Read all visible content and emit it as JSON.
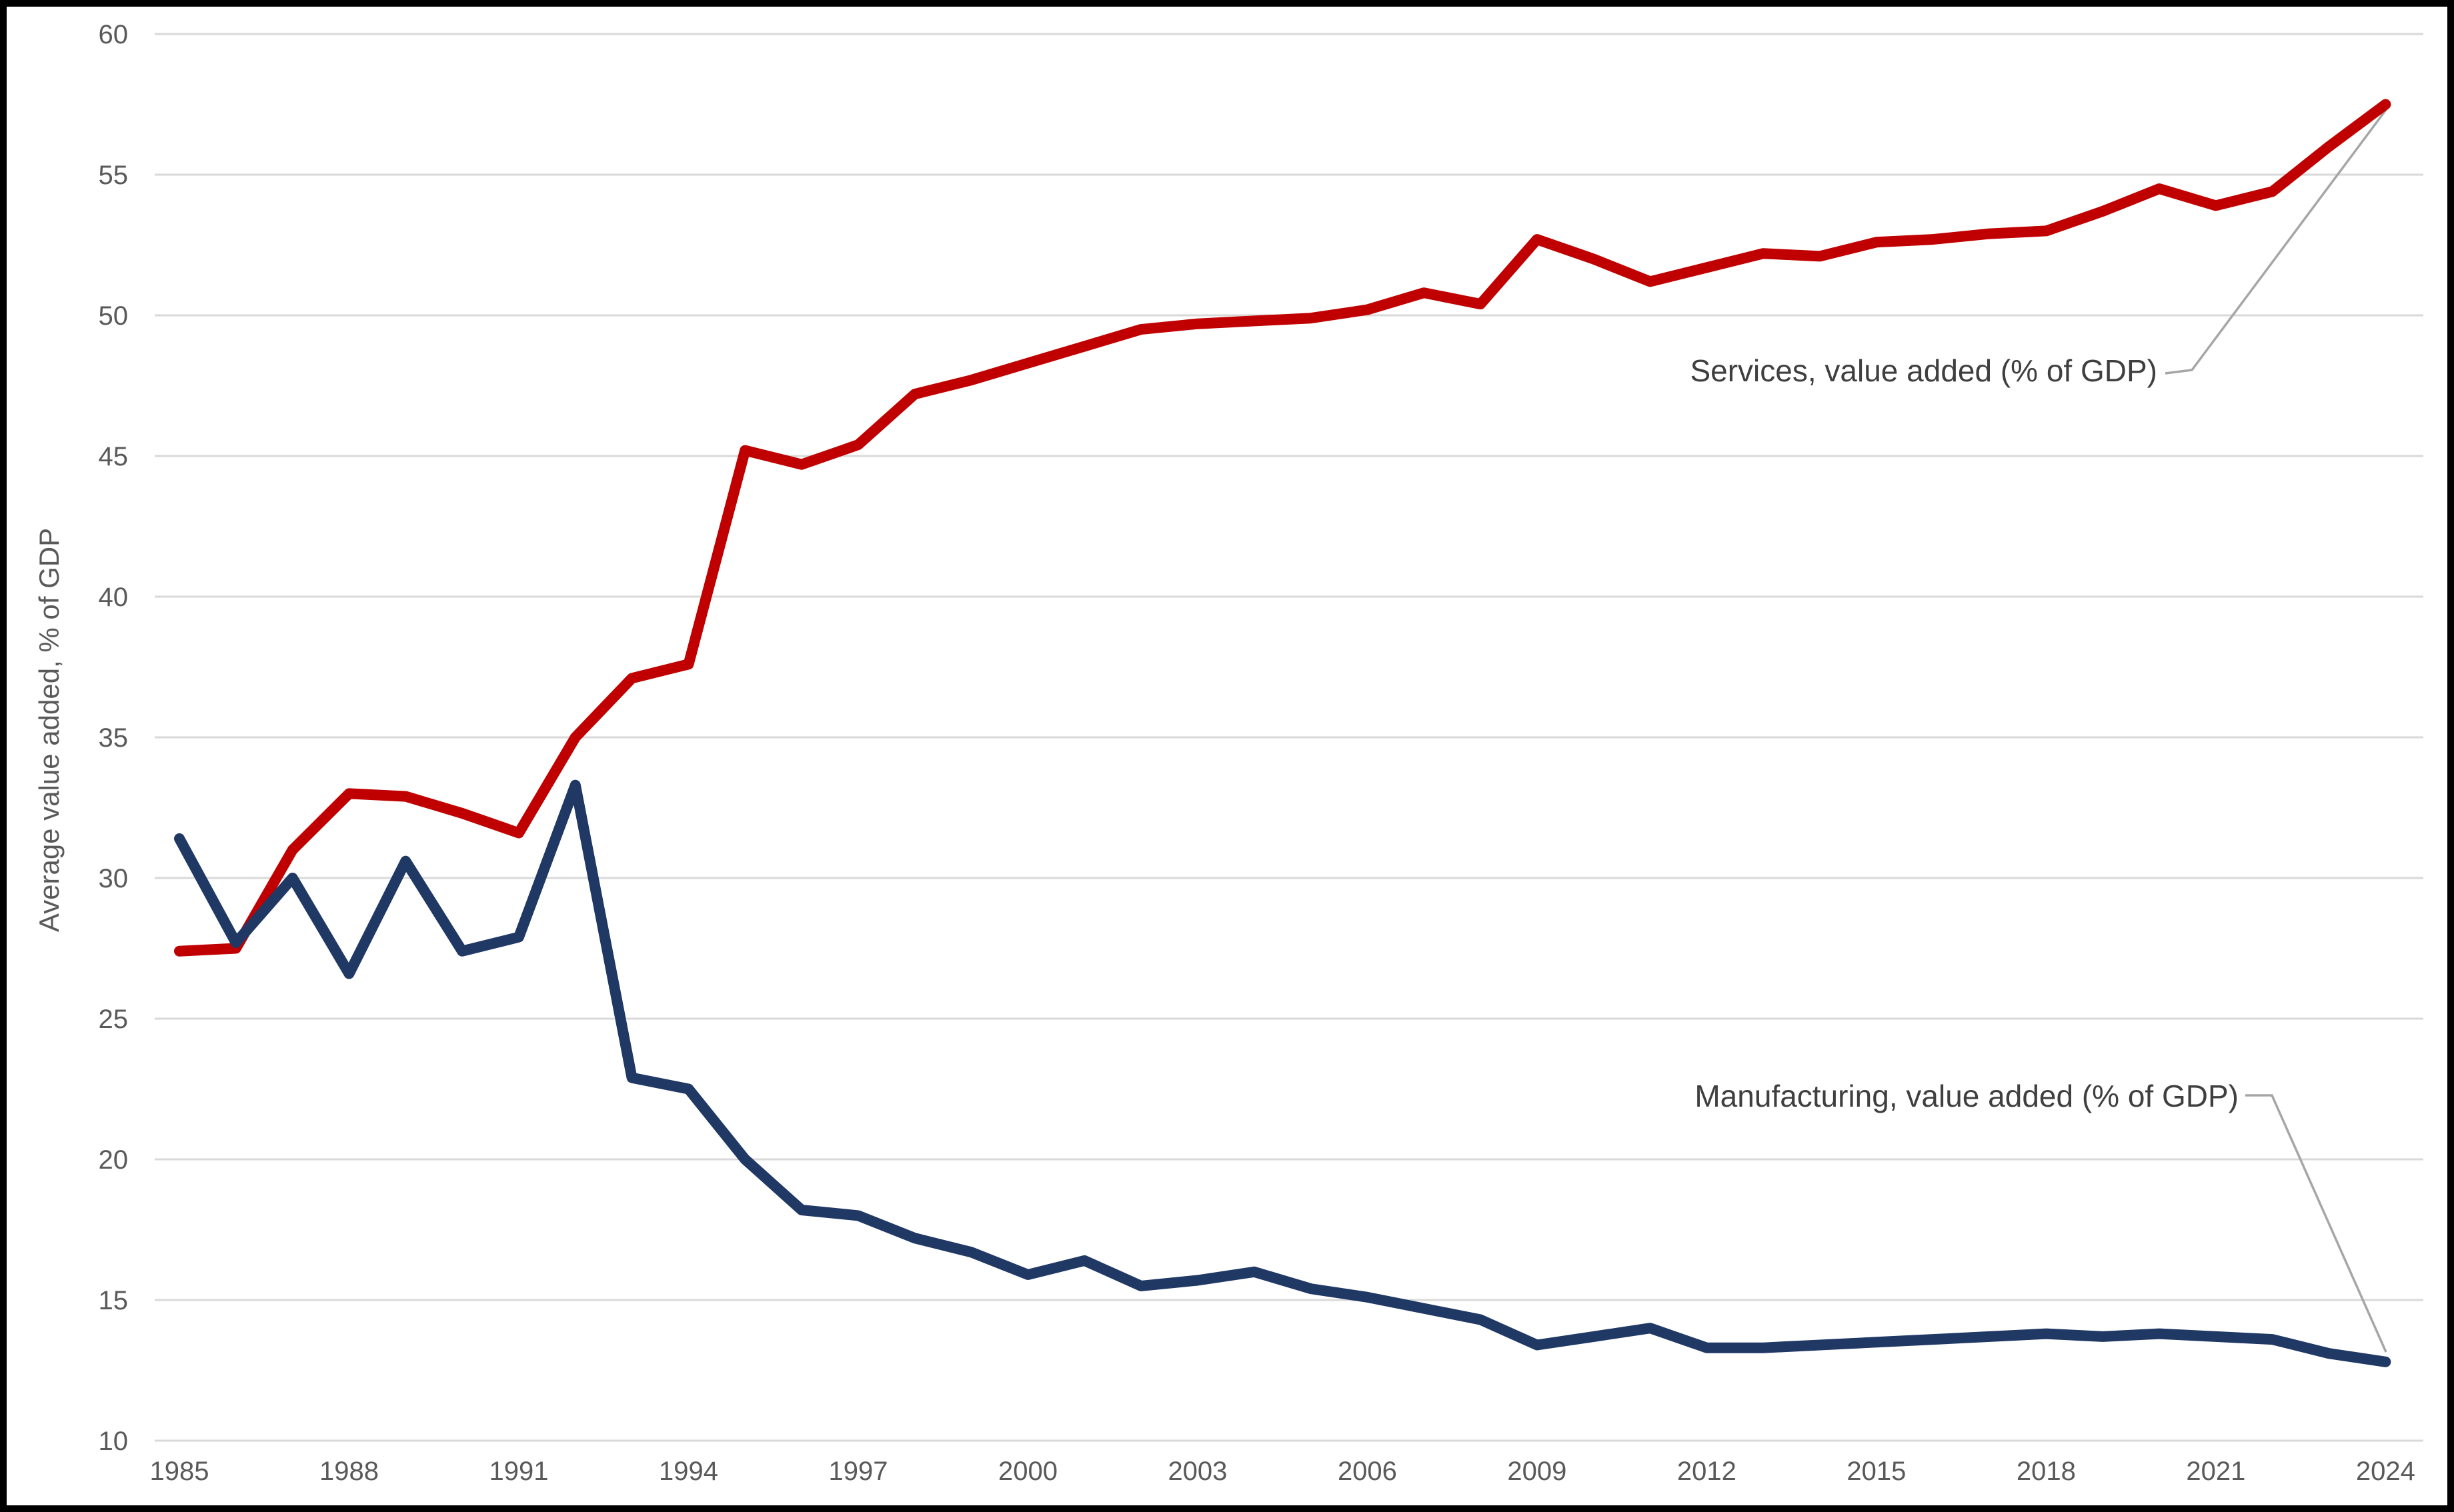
{
  "chart_data": {
    "type": "line",
    "title": "",
    "xlabel": "",
    "ylabel": "Average value added, % of GDP",
    "ylim": [
      10,
      60
    ],
    "grid": true,
    "legend_position": "direct-labels-with-leader-lines",
    "x": [
      1985,
      1986,
      1987,
      1988,
      1989,
      1990,
      1991,
      1992,
      1993,
      1994,
      1995,
      1996,
      1997,
      1998,
      1999,
      2000,
      2001,
      2002,
      2003,
      2004,
      2005,
      2006,
      2007,
      2008,
      2009,
      2010,
      2011,
      2012,
      2013,
      2014,
      2015,
      2016,
      2017,
      2018,
      2019,
      2020,
      2021,
      2022,
      2023,
      2024
    ],
    "x_tick_labels": [
      "1985",
      "1988",
      "1991",
      "1994",
      "1997",
      "2000",
      "2003",
      "2006",
      "2009",
      "2012",
      "2015",
      "2018",
      "2021",
      "2024"
    ],
    "y_tick_labels": [
      "10",
      "15",
      "20",
      "25",
      "30",
      "35",
      "40",
      "45",
      "50",
      "55",
      "60"
    ],
    "series": [
      {
        "name": "Services, value added (% of GDP)",
        "color": "#c00000",
        "values": [
          27.4,
          27.5,
          31.0,
          33.0,
          32.9,
          32.3,
          31.6,
          35.0,
          37.1,
          37.6,
          45.2,
          44.7,
          45.4,
          47.2,
          47.7,
          48.3,
          48.9,
          49.5,
          49.7,
          49.8,
          49.9,
          50.2,
          50.8,
          50.4,
          52.7,
          52.0,
          51.2,
          51.7,
          52.2,
          52.1,
          52.6,
          52.7,
          52.9,
          53.0,
          53.7,
          54.5,
          53.9,
          54.4,
          56.0,
          57.5
        ]
      },
      {
        "name": "Manufacturing, value added (% of GDP)",
        "color": "#1f3864",
        "values": [
          31.4,
          27.7,
          30.0,
          26.6,
          30.6,
          27.4,
          27.9,
          33.3,
          22.9,
          22.5,
          20.0,
          18.2,
          18.0,
          17.2,
          16.7,
          15.9,
          16.4,
          15.5,
          15.7,
          16.0,
          15.4,
          15.1,
          14.7,
          14.3,
          13.4,
          13.7,
          14.0,
          13.3,
          13.3,
          13.4,
          13.5,
          13.6,
          13.7,
          13.8,
          13.7,
          13.8,
          13.7,
          13.6,
          13.1,
          12.8
        ]
      }
    ],
    "colors": {
      "gridline": "#d9d9d9",
      "tick_text": "#595959",
      "axis_title_text": "#595959",
      "annotation_text": "#3f3f3f",
      "leader_line": "#a6a6a6",
      "frame_border": "#000000",
      "background": "#ffffff"
    }
  }
}
